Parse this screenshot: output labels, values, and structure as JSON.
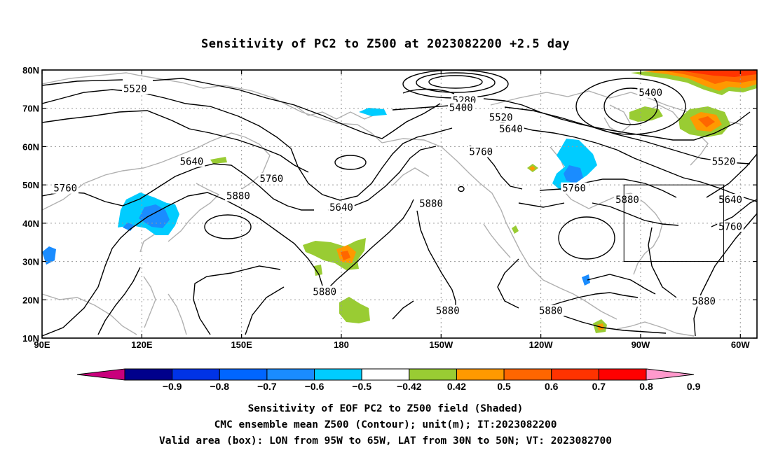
{
  "chart_data": {
    "type": "heatmap",
    "title": "Sensitivity of PC2 to Z500 at 2023082200 +2.5 day",
    "xlim": [
      90,
      305
    ],
    "ylim": [
      10,
      80
    ],
    "x_ticks": [
      {
        "lon": 90,
        "label": "90E"
      },
      {
        "lon": 120,
        "label": "120E"
      },
      {
        "lon": 150,
        "label": "150E"
      },
      {
        "lon": 180,
        "label": "180"
      },
      {
        "lon": 210,
        "label": "150W"
      },
      {
        "lon": 240,
        "label": "120W"
      },
      {
        "lon": 270,
        "label": "90W"
      },
      {
        "lon": 300,
        "label": "60W"
      }
    ],
    "y_ticks": [
      {
        "lat": 80,
        "label": "80N"
      },
      {
        "lat": 70,
        "label": "70N"
      },
      {
        "lat": 60,
        "label": "60N"
      },
      {
        "lat": 50,
        "label": "50N"
      },
      {
        "lat": 40,
        "label": "40N"
      },
      {
        "lat": 30,
        "label": "30N"
      },
      {
        "lat": 20,
        "label": "20N"
      },
      {
        "lat": 10,
        "label": "10N"
      }
    ],
    "grid": true,
    "valid_box": {
      "lon": [
        265,
        295
      ],
      "lat": [
        30,
        50
      ]
    },
    "contour_labels": [
      {
        "text": "5520",
        "lon": 118,
        "lat": 75
      },
      {
        "text": "5280",
        "lon": 217,
        "lat": 72
      },
      {
        "text": "5400",
        "lon": 216,
        "lat": 70
      },
      {
        "text": "5520",
        "lon": 228,
        "lat": 67.5
      },
      {
        "text": "5640",
        "lon": 231,
        "lat": 64.5
      },
      {
        "text": "5760",
        "lon": 222,
        "lat": 58.5
      },
      {
        "text": "5640",
        "lon": 135,
        "lat": 56
      },
      {
        "text": "5760",
        "lon": 159,
        "lat": 51.5
      },
      {
        "text": "5760",
        "lon": 97,
        "lat": 49
      },
      {
        "text": "5880",
        "lon": 149,
        "lat": 47
      },
      {
        "text": "5640",
        "lon": 180,
        "lat": 44
      },
      {
        "text": "5880",
        "lon": 207,
        "lat": 45
      },
      {
        "text": "5760",
        "lon": 250,
        "lat": 49
      },
      {
        "text": "5880",
        "lon": 266,
        "lat": 46
      },
      {
        "text": "5400",
        "lon": 273,
        "lat": 74
      },
      {
        "text": "5520",
        "lon": 295,
        "lat": 56
      },
      {
        "text": "5640",
        "lon": 297,
        "lat": 46
      },
      {
        "text": "5760",
        "lon": 297,
        "lat": 39
      },
      {
        "text": "5880",
        "lon": 175,
        "lat": 22
      },
      {
        "text": "5880",
        "lon": 212,
        "lat": 17
      },
      {
        "text": "5880",
        "lon": 243,
        "lat": 17
      },
      {
        "text": "5880",
        "lon": 289,
        "lat": 19.5
      }
    ],
    "colorbar": {
      "levels": [
        "-0.9",
        "-0.8",
        "-0.7",
        "-0.6",
        "-0.5",
        "-0.42",
        "0.42",
        "0.5",
        "0.6",
        "0.7",
        "0.8",
        "0.9"
      ],
      "colors": [
        "#c8007c",
        "#00008c",
        "#0033e6",
        "#0066ff",
        "#1a8cff",
        "#00ccff",
        "#ffffff",
        "#99cc33",
        "#ff9900",
        "#ff6600",
        "#ff3300",
        "#ff0000",
        "#ff99cc"
      ]
    },
    "captions": [
      "Sensitivity of EOF PC2 to Z500 field (Shaded)",
      "CMC ensemble mean Z500 (Contour); unit(m); IT:2023082200",
      "Valid area (box): LON from 95W to 65W, LAT from 30N to 50N; VT: 2023082700"
    ]
  }
}
